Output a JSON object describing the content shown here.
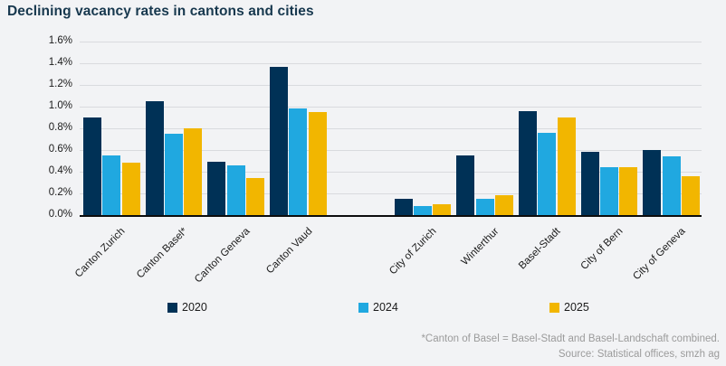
{
  "title": "Declining vacancy rates in cantons and cities",
  "footnote": "*Canton of Basel = Basel-Stadt and Basel-Landschaft combined.",
  "source": "Source: Statistical offices, smzh ag",
  "colors": {
    "background": "#f2f3f5",
    "title": "#17384e",
    "gridline": "#d9dbde",
    "axis": "#0d0d0d",
    "series_2020": "#003156",
    "series_2024": "#20a8e0",
    "series_2025": "#f2b600",
    "footnote_text": "#9b9b9b"
  },
  "chart_data": {
    "type": "bar",
    "title": "Declining vacancy rates in cantons and cities",
    "categories": [
      "Canton Zurich",
      "Canton Basel*",
      "Canton Geneva",
      "Canton Vaud",
      "City of Zurich",
      "Winterthur",
      "Basel-Stadt",
      "City of Bern",
      "City of Geneva"
    ],
    "series": [
      {
        "name": "2020",
        "color": "#003156",
        "values": [
          0.9,
          1.05,
          0.49,
          1.37,
          0.15,
          0.55,
          0.96,
          0.58,
          0.6
        ]
      },
      {
        "name": "2024",
        "color": "#20a8e0",
        "values": [
          0.55,
          0.75,
          0.46,
          0.98,
          0.08,
          0.15,
          0.76,
          0.44,
          0.54
        ]
      },
      {
        "name": "2025",
        "color": "#f2b600",
        "values": [
          0.48,
          0.8,
          0.34,
          0.95,
          0.1,
          0.18,
          0.9,
          0.44,
          0.36
        ]
      }
    ],
    "xlabel": "",
    "ylabel": "",
    "ylim": [
      0,
      1.6
    ],
    "ytick_step": 0.2,
    "ytick_format": "percent_one_decimal",
    "grid": "horizontal",
    "gap_after_index": 3,
    "legend_position": "bottom",
    "category_label_rotation": -45
  }
}
